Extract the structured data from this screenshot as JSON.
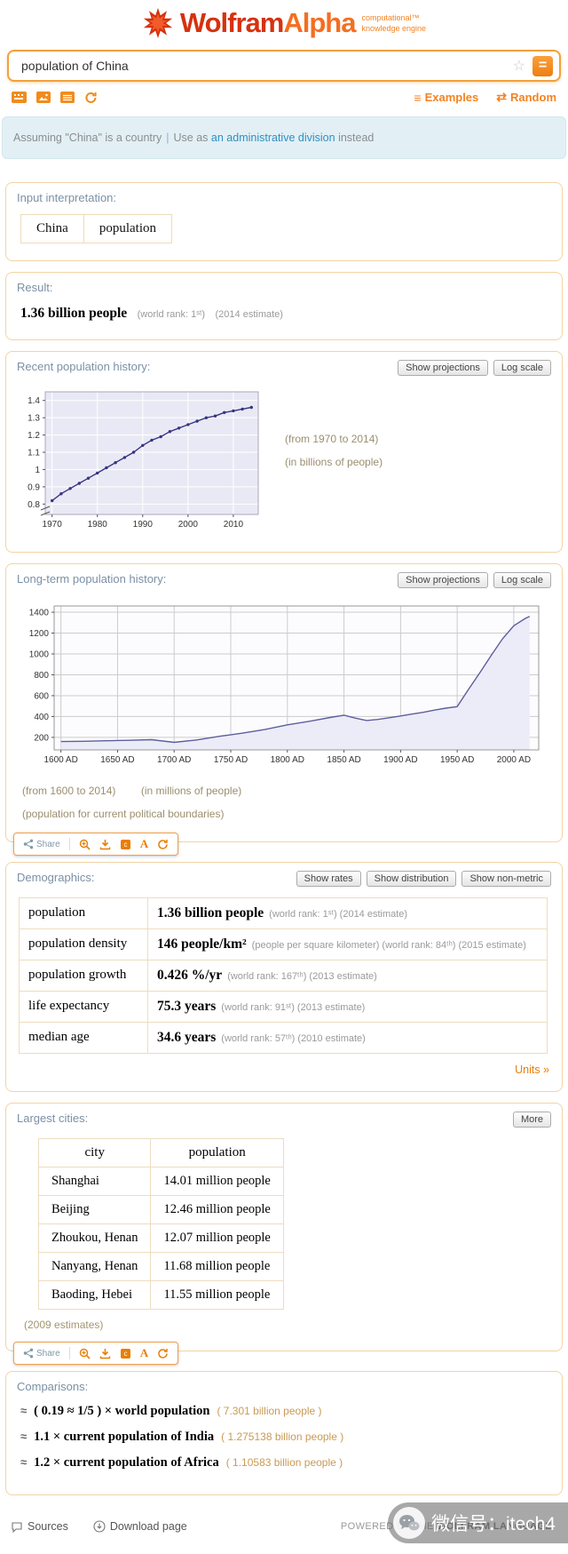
{
  "header": {
    "brand_wolfram": "Wolfram",
    "brand_alpha": "Alpha",
    "tagline_line1": "computational™",
    "tagline_line2": "knowledge engine"
  },
  "search": {
    "value": "population of China",
    "star_glyph": "☆",
    "compute_glyph": "="
  },
  "tools": {
    "examples_glyph": "≡",
    "examples_label": "Examples",
    "random_glyph": "⇄",
    "random_label": "Random"
  },
  "assumption": {
    "text_before": "Assuming \"China\" is a country",
    "separator": "|",
    "use_as": "Use as",
    "link_text": "an administrative division",
    "text_after": "instead"
  },
  "pods": {
    "interpretation": {
      "title": "Input interpretation:",
      "cells": [
        "China",
        "population"
      ]
    },
    "result": {
      "title": "Result:",
      "value": "1.36 billion people",
      "note1": "(world rank: 1ˢᵗ)",
      "note2": "(2014 estimate)"
    },
    "recent": {
      "title": "Recent population history:",
      "buttons": [
        "Show projections",
        "Log scale"
      ]
    },
    "longterm": {
      "title": "Long-term population history:",
      "buttons": [
        "Show projections",
        "Log scale"
      ]
    },
    "demographics": {
      "title": "Demographics:",
      "buttons": [
        "Show rates",
        "Show distribution",
        "Show non-metric"
      ],
      "rows": [
        {
          "label": "population",
          "value": "1.36 billion people",
          "notes": "(world rank: 1ˢᵗ)   (2014 estimate)"
        },
        {
          "label": "population density",
          "value": "146 people/km²",
          "notes": "(people per square kilometer)   (world rank: 84ᵗʰ)   (2015 estimate)"
        },
        {
          "label": "population growth",
          "value": "0.426 %/yr",
          "notes": "(world rank: 167ᵗʰ)   (2013 estimate)"
        },
        {
          "label": "life expectancy",
          "value": "75.3 years",
          "notes": "(world rank: 91ˢᵗ)   (2013 estimate)"
        },
        {
          "label": "median age",
          "value": "34.6 years",
          "notes": "(world rank: 57ᵗʰ)   (2010 estimate)"
        }
      ],
      "units_link": "Units »"
    },
    "cities": {
      "title": "Largest cities:",
      "more_button": "More",
      "headers": [
        "city",
        "population"
      ],
      "rows": [
        [
          "Shanghai",
          "14.01 million people"
        ],
        [
          "Beijing",
          "12.46 million people"
        ],
        [
          "Zhoukou, Henan",
          "12.07 million people"
        ],
        [
          "Nanyang, Henan",
          "11.68 million people"
        ],
        [
          "Baoding, Hebei",
          "11.55 million people"
        ]
      ],
      "caption": "(2009 estimates)"
    },
    "comparisons": {
      "title": "Comparisons:",
      "items": [
        {
          "approx": "≈",
          "main": "( 0.19 ≈ 1/5 ) × world population",
          "note": "( 7.301 billion people )"
        },
        {
          "approx": "≈",
          "main": "1.1 × current population of India",
          "note": "( 1.275138 billion people )"
        },
        {
          "approx": "≈",
          "main": "1.2 × current population of Africa",
          "note": "( 1.10583 billion people )"
        }
      ]
    }
  },
  "share": {
    "label": "Share",
    "plaintext_glyph": "A"
  },
  "footer": {
    "sources_label": "Sources",
    "download_label": "Download page",
    "powered_prefix": "POWERED BY THE",
    "powered_brand": "WOLFRAM LANGUAGE"
  },
  "watermark": {
    "text": "微信号：itech4"
  },
  "chart_data": [
    {
      "id": "recent-population-history",
      "type": "line",
      "title": "Recent population history",
      "x": [
        1970,
        1972,
        1974,
        1976,
        1978,
        1980,
        1982,
        1984,
        1986,
        1988,
        1990,
        1992,
        1994,
        1996,
        1998,
        2000,
        2002,
        2004,
        2006,
        2008,
        2010,
        2012,
        2014
      ],
      "y": [
        0.82,
        0.86,
        0.89,
        0.92,
        0.95,
        0.98,
        1.01,
        1.04,
        1.07,
        1.1,
        1.14,
        1.17,
        1.19,
        1.22,
        1.24,
        1.26,
        1.28,
        1.3,
        1.31,
        1.33,
        1.34,
        1.35,
        1.36
      ],
      "xlim": [
        1968.5,
        2015.5
      ],
      "ylim": [
        0.74,
        1.45
      ],
      "x_ticks": [
        1970,
        1980,
        1990,
        2000,
        2010
      ],
      "x_tick_labels": [
        "1970",
        "1980",
        "1990",
        "2000",
        "2010"
      ],
      "y_ticks": [
        0.8,
        0.9,
        1,
        1.1,
        1.2,
        1.3,
        1.4
      ],
      "y_tick_labels": [
        "0.8",
        "0.9",
        "1",
        "1.1",
        "1.2",
        "1.3",
        "1.4"
      ],
      "unit": "billions of people",
      "annotations": [
        "(from 1970 to 2014)",
        "(in billions of people)"
      ],
      "line_color": "#35357f",
      "plot_bg": "#e9e9f5",
      "grid_color": "#ffffff",
      "frame_color": "#a8a8bd",
      "markers": true,
      "axis_break": true
    },
    {
      "id": "long-term-population-history",
      "type": "line",
      "title": "Long-term population history",
      "x": [
        1600,
        1620,
        1640,
        1660,
        1680,
        1700,
        1720,
        1740,
        1760,
        1780,
        1800,
        1820,
        1840,
        1850,
        1860,
        1870,
        1880,
        1890,
        1900,
        1910,
        1920,
        1930,
        1940,
        1950,
        1960,
        1970,
        1980,
        1990,
        2000,
        2010,
        2014
      ],
      "y": [
        160,
        163,
        168,
        172,
        178,
        152,
        175,
        210,
        240,
        275,
        320,
        355,
        395,
        412,
        385,
        362,
        372,
        388,
        405,
        423,
        440,
        462,
        480,
        495,
        660,
        820,
        985,
        1145,
        1270,
        1340,
        1360
      ],
      "xlim": [
        1594,
        2022
      ],
      "ylim": [
        80,
        1460
      ],
      "x_ticks": [
        1600,
        1650,
        1700,
        1750,
        1800,
        1850,
        1900,
        1950,
        2000
      ],
      "x_tick_labels": [
        "1600 AD",
        "1650 AD",
        "1700 AD",
        "1750 AD",
        "1800 AD",
        "1850 AD",
        "1900 AD",
        "1950 AD",
        "2000 AD"
      ],
      "y_ticks": [
        200,
        400,
        600,
        800,
        1000,
        1200,
        1400
      ],
      "y_tick_labels": [
        "200",
        "400",
        "600",
        "800",
        "1000",
        "1200",
        "1400"
      ],
      "unit": "millions of people",
      "annotations": [
        "(from 1600 to 2014)",
        "(in millions of people)",
        "(population for current political boundaries)"
      ],
      "line_color": "#5e5e9e",
      "plot_bg": "#fcfcfe",
      "grid_color": "#cccccc",
      "frame_color": "#999999",
      "fill": "#ececf8",
      "markers": false,
      "axis_break": false
    }
  ]
}
